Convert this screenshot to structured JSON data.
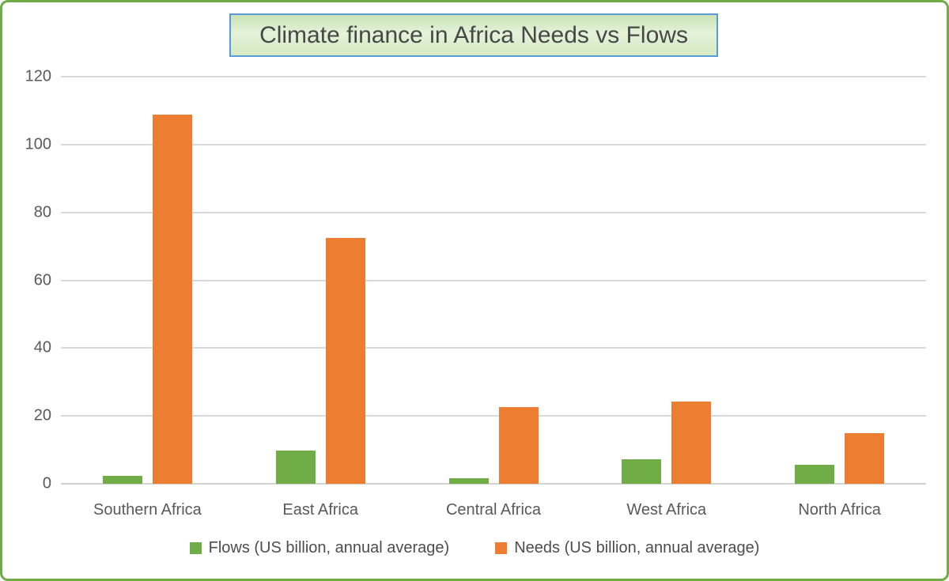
{
  "frame": {
    "border_color": "#6FAC47",
    "background_color": "#FFFFFF"
  },
  "title_box": {
    "border_color": "#5B9BD5",
    "fill_top": "#C9E3B6",
    "fill_middle": "#E4F2D8",
    "text_color": "#474747"
  },
  "axis_style": {
    "gridline_color": "#D9D9D9",
    "tick_label_color": "#595959",
    "grid_on": true
  },
  "chart_data": {
    "type": "bar",
    "title": "Climate finance in Africa Needs vs Flows",
    "categories": [
      "Southern Africa",
      "East Africa",
      "Central Africa",
      "West Africa",
      "North Africa"
    ],
    "series": [
      {
        "name": "Flows (US billion, annual average)",
        "color": "#70AD47",
        "values": [
          2.3,
          9.8,
          1.7,
          7.3,
          5.6
        ]
      },
      {
        "name": "Needs (US billion, annual average)",
        "color": "#ED7D31",
        "values": [
          108.8,
          72.5,
          22.6,
          24.2,
          14.9
        ]
      }
    ],
    "xlabel": "",
    "ylabel": "",
    "ylim": [
      0,
      120
    ],
    "ytick_interval": 20,
    "yticks": [
      0,
      20,
      40,
      60,
      80,
      100,
      120
    ],
    "grid": true,
    "legend_position": "bottom"
  }
}
